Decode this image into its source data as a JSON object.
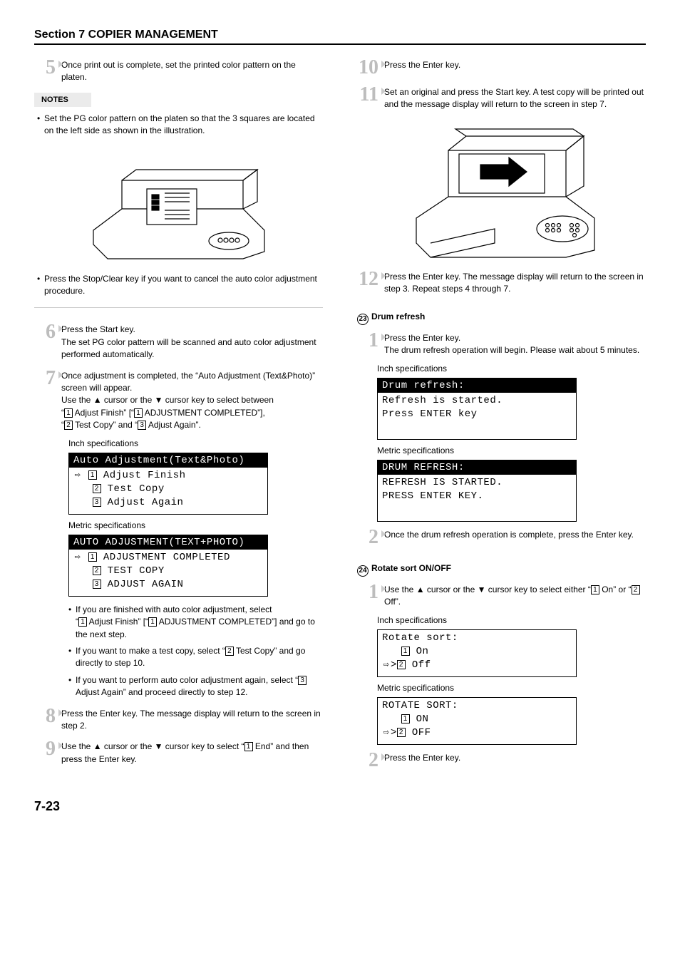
{
  "section_title": "Section 7  COPIER MANAGEMENT",
  "page_number": "7-23",
  "left": {
    "step5": "Once print out is complete, set the printed color pattern on the platen.",
    "notes_label": "NOTES",
    "note1": "Set the PG color pattern on the platen so that the 3 squares are located on the left side as shown in the illustration.",
    "note2": "Press the Stop/Clear key if you want to cancel the auto color adjustment procedure.",
    "step6": "Press the Start key.\nThe set PG color pattern will be scanned and auto color adjustment performed automatically.",
    "step7_a": "Once adjustment is completed, the “Auto Adjustment (Text&Photo)” screen will appear.",
    "step7_b": "Use the ▲ cursor or the ▼ cursor key to select between",
    "step7_c1_pre": "“",
    "step7_c1_mid": " Adjust Finish” [“",
    "step7_c1_post": " ADJUSTMENT COMPLETED”],",
    "step7_c2_pre": "“",
    "step7_c2_mid": " Test Copy” and “",
    "step7_c2_post": " Adjust Again”.",
    "inch_label": "Inch specifications",
    "metric_label": "Metric specifications",
    "lcd_inch_hdr": "Auto Adjustment(Text&Photo)",
    "lcd_inch_1": "Adjust Finish",
    "lcd_inch_2": "Test Copy",
    "lcd_inch_3": "Adjust Again",
    "lcd_metric_hdr": "AUTO ADJUSTMENT(TEXT+PHOTO)",
    "lcd_metric_1": "ADJUSTMENT COMPLETED",
    "lcd_metric_2": "TEST COPY",
    "lcd_metric_3": "ADJUST AGAIN",
    "sb1_a": "If you are finished with auto color adjustment, select",
    "sb1_b_pre": "“",
    "sb1_b_mid": " Adjust Finish” [“",
    "sb1_b_post": " ADJUSTMENT COMPLETED”] and go to the next step.",
    "sb2_pre": "If you want to make a test copy, select “",
    "sb2_post": " Test Copy” and go directly to step 10.",
    "sb3_pre": "If you want to perform auto color adjustment again, select “",
    "sb3_post": " Adjust Again” and proceed directly to step 12.",
    "step8": "Press the Enter key. The message display will return to the screen in step 2.",
    "step9_pre": "Use the ▲ cursor or the ▼ cursor key to select “",
    "step9_post": " End” and then press the Enter key."
  },
  "right": {
    "step10": "Press the Enter key.",
    "step11": "Set an original and press the Start key. A test copy will be printed out and the message display will return to the screen in step 7.",
    "step12": "Press the Enter key. The message display will return to the screen in step 3. Repeat steps 4 through 7.",
    "h23_num": "23",
    "h23": "Drum refresh",
    "d_step1": "Press the Enter key.\nThe drum refresh operation will begin. Please wait about 5 minutes.",
    "inch_label": "Inch specifications",
    "metric_label": "Metric specifications",
    "lcd_d_inch_hdr": "Drum refresh:",
    "lcd_d_inch_1": "Refresh is started.",
    "lcd_d_inch_2": "Press ENTER key",
    "lcd_d_metric_hdr": "DRUM REFRESH:",
    "lcd_d_metric_1": "REFRESH IS STARTED.",
    "lcd_d_metric_2": "PRESS ENTER KEY.",
    "d_step2": "Once the drum refresh operation is complete, press the Enter key.",
    "h24_num": "24",
    "h24": "Rotate sort ON/OFF",
    "r_step1_pre": "Use the ▲ cursor or the ▼ cursor key to select either “",
    "r_step1_mid": " On” or “",
    "r_step1_post": " Off”.",
    "lcd_r_inch_hdr": "Rotate sort:",
    "lcd_r_inch_1": "On",
    "lcd_r_inch_2": "Off",
    "lcd_r_metric_hdr": "ROTATE SORT:",
    "lcd_r_metric_1": "ON",
    "lcd_r_metric_2": "OFF",
    "r_step2": "Press the Enter key."
  }
}
